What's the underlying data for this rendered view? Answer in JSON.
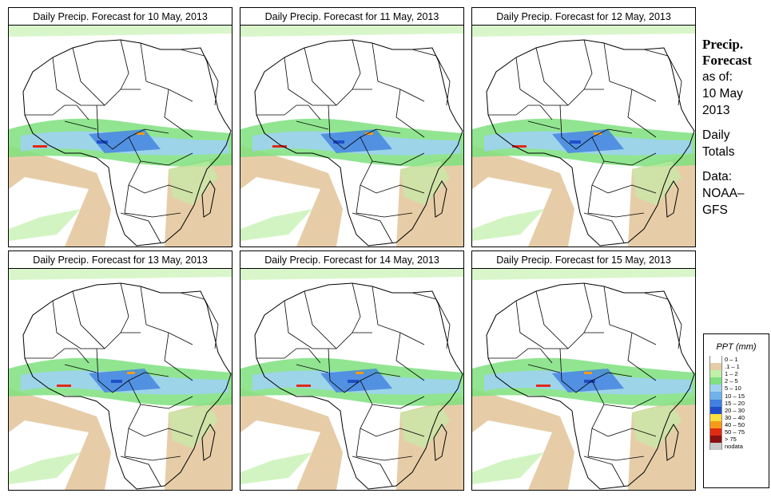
{
  "panels": [
    {
      "title": "Daily Precip. Forecast for  10 May, 2013"
    },
    {
      "title": "Daily Precip. Forecast for  11 May, 2013"
    },
    {
      "title": "Daily Precip. Forecast for  12 May, 2013"
    },
    {
      "title": "Daily Precip. Forecast for  13 May, 2013"
    },
    {
      "title": "Daily Precip. Forecast for  14 May, 2013"
    },
    {
      "title": "Daily Precip. Forecast for  15 May, 2013"
    }
  ],
  "sidebar": {
    "title_line1": "Precip.",
    "title_line2": "Forecast",
    "asof": "as of:",
    "date_line1": "10 May",
    "date_line2": "2013",
    "totals_line1": "Daily",
    "totals_line2": "Totals",
    "data_line1": "Data:",
    "data_line2": "NOAA–",
    "data_line3": "GFS"
  },
  "legend": {
    "title": "PPT (mm)",
    "classes": [
      {
        "label": "0 – 1",
        "color": "#ffffff"
      },
      {
        "label": ".1 – 1",
        "color": "#e6cda8"
      },
      {
        "label": "1 – 2",
        "color": "#bff0a8"
      },
      {
        "label": "2 – 5",
        "color": "#7ee07e"
      },
      {
        "label": "5 – 10",
        "color": "#9fd2f2"
      },
      {
        "label": "10 – 15",
        "color": "#70b2ec"
      },
      {
        "label": "15 – 20",
        "color": "#4080e0"
      },
      {
        "label": "20 – 30",
        "color": "#1f4fc8"
      },
      {
        "label": "30 – 40",
        "color": "#f8e040"
      },
      {
        "label": "40 – 50",
        "color": "#f89a18"
      },
      {
        "label": "50 – 75",
        "color": "#e22a10"
      },
      {
        "label": "> 75",
        "color": "#8a1010"
      },
      {
        "label": "nodata",
        "color": "#c8c8c8"
      }
    ]
  },
  "colors": {
    "desert": "#e6cda8",
    "light_green": "#bff0a8",
    "green": "#7ee07e",
    "light_blue": "#9fd2f2",
    "blue": "#4080e0",
    "dark_blue": "#1f4fc8",
    "red": "#e22a10",
    "orange": "#f89a18",
    "cyan": "#a8e8f8"
  }
}
